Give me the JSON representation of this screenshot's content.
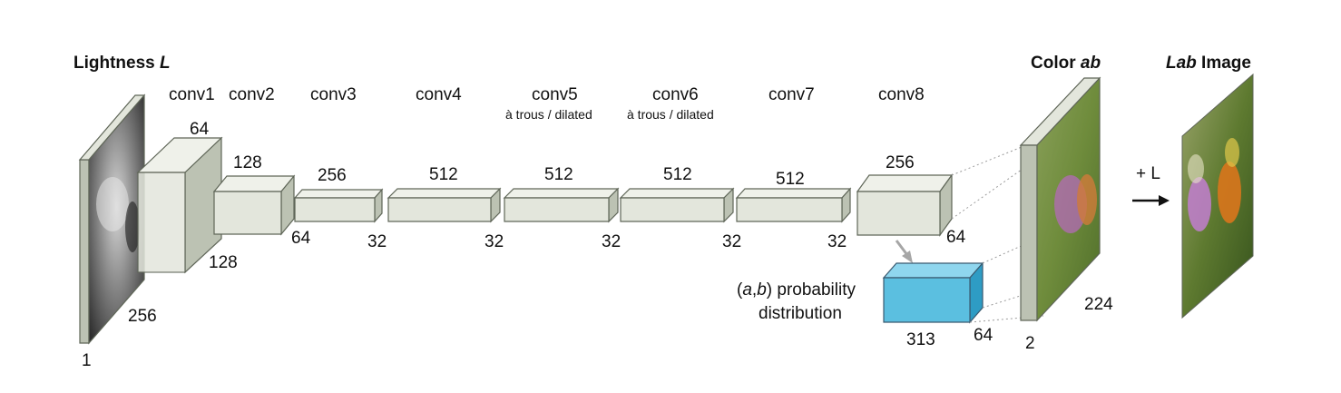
{
  "titles": {
    "lightness_prefix": "Lightness ",
    "lightness_var": "L",
    "color_prefix": "Color ",
    "color_var": "ab",
    "lab_var": "Lab",
    "lab_suffix": " Image"
  },
  "layers": [
    {
      "name": "conv1",
      "sub": "",
      "top_dim": "64",
      "right_dim": "",
      "bottom_dim": "128"
    },
    {
      "name": "conv2",
      "sub": "",
      "top_dim": "128",
      "right_dim": "64",
      "bottom_dim": ""
    },
    {
      "name": "conv3",
      "sub": "",
      "top_dim": "256",
      "right_dim": "32",
      "bottom_dim": ""
    },
    {
      "name": "conv4",
      "sub": "",
      "top_dim": "512",
      "right_dim": "32",
      "bottom_dim": ""
    },
    {
      "name": "conv5",
      "sub": "à trous / dilated",
      "top_dim": "512",
      "right_dim": "32",
      "bottom_dim": ""
    },
    {
      "name": "conv6",
      "sub": "à trous / dilated",
      "top_dim": "512",
      "right_dim": "32",
      "bottom_dim": ""
    },
    {
      "name": "conv7",
      "sub": "",
      "top_dim": "512",
      "right_dim": "32",
      "bottom_dim": ""
    },
    {
      "name": "conv8",
      "sub": "",
      "top_dim": "256",
      "right_dim": "64",
      "bottom_dim": ""
    }
  ],
  "input": {
    "depth": "1",
    "size": "256"
  },
  "output_ab": {
    "depth": "2",
    "size": "224"
  },
  "probability": {
    "label_open": "(",
    "label_a": "a",
    "label_comma": ",",
    "label_b": "b",
    "label_rest": ") probability",
    "label_line2": "distribution",
    "width_dim": "313",
    "depth_dim": "64"
  },
  "plus_l": "+ L",
  "colors": {
    "block_front": "#e3e6dc",
    "block_side": "#bcc2b3",
    "prob_block": "#5bbfe0"
  }
}
